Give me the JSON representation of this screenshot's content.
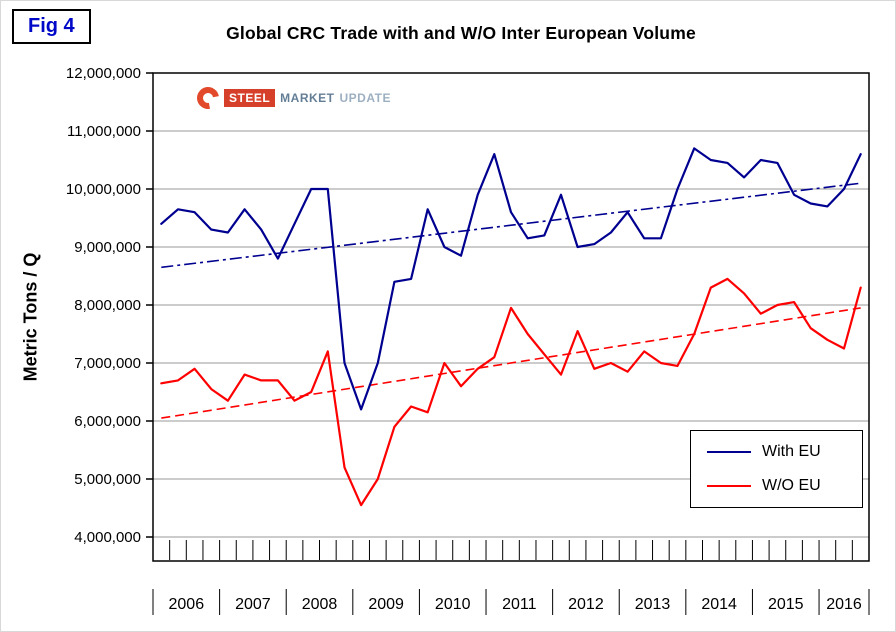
{
  "figure_label": "Fig 4",
  "title": "Global CRC Trade with and W/O Inter European Volume",
  "y_axis_title": "Metric Tons / Q",
  "logo": {
    "steel": "STEEL",
    "market": "MARKET",
    "update": "UPDATE"
  },
  "chart_data": {
    "type": "line",
    "title": "Global CRC Trade with and W/O Inter European Volume",
    "ylabel": "Metric Tons / Q",
    "xlabel": "",
    "frequency": "quarterly",
    "x_start": "2006Q1",
    "x_end": "2016Q3",
    "years": [
      "2006",
      "2007",
      "2008",
      "2009",
      "2010",
      "2011",
      "2012",
      "2013",
      "2014",
      "2015",
      "2016"
    ],
    "y_ticks": [
      "12,000,000",
      "11,000,000",
      "10,000,000",
      "9,000,000",
      "8,000,000",
      "7,000,000",
      "6,000,000",
      "5,000,000",
      "4,000,000"
    ],
    "ylim": [
      4000000,
      12000000
    ],
    "grid": true,
    "legend_position": "lower-right-inside",
    "series": [
      {
        "name": "With EU",
        "color": "#000090",
        "values": [
          9400000,
          9650000,
          9600000,
          9300000,
          9250000,
          9650000,
          9300000,
          8800000,
          9400000,
          10000000,
          10000000,
          7000000,
          6200000,
          7000000,
          8400000,
          8450000,
          9650000,
          9000000,
          8850000,
          9900000,
          10600000,
          9600000,
          9150000,
          9200000,
          9900000,
          9000000,
          9050000,
          9250000,
          9600000,
          9150000,
          9150000,
          10000000,
          10700000,
          10500000,
          10450000,
          10200000,
          10500000,
          10450000,
          9900000,
          9750000,
          9700000,
          10000000,
          10600000
        ]
      },
      {
        "name": "W/O EU",
        "color": "#ff0000",
        "values": [
          6650000,
          6700000,
          6900000,
          6550000,
          6350000,
          6800000,
          6700000,
          6700000,
          6350000,
          6500000,
          7200000,
          5200000,
          4550000,
          5000000,
          5900000,
          6250000,
          6150000,
          7000000,
          6600000,
          6900000,
          7100000,
          7950000,
          7500000,
          7150000,
          6800000,
          7550000,
          6900000,
          7000000,
          6850000,
          7200000,
          7000000,
          6950000,
          7500000,
          8300000,
          8450000,
          8200000,
          7850000,
          8000000,
          8050000,
          7600000,
          7400000,
          7250000,
          8300000
        ]
      }
    ],
    "trendlines": [
      {
        "name": "With EU trend",
        "color": "#000090",
        "dash": "dashdot",
        "start": 8650000,
        "end": 10100000
      },
      {
        "name": "W/O EU trend",
        "color": "#ff0000",
        "dash": "dash",
        "start": 6050000,
        "end": 7950000
      }
    ]
  }
}
